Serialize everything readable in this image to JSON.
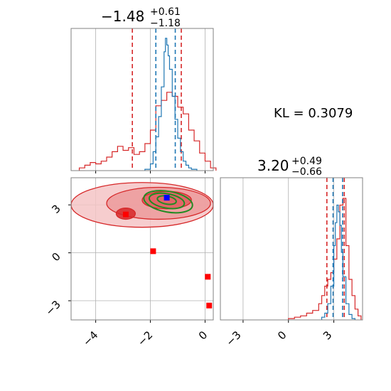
{
  "colors": {
    "red": "#d62728",
    "blue": "#1f77b4",
    "green": "#228b22",
    "scatter_blue": "#0000ff",
    "outlier_red": "#ff0000"
  },
  "kl_text": "KL = 0.3079",
  "chart_data": [
    {
      "type": "histogram",
      "panel": "top-left marginal",
      "title_value": "−1.48",
      "title_plus": "+0.61",
      "title_minus": "−1.18",
      "xlim": [
        -4.9,
        0.3
      ],
      "xticks": [
        -4,
        -2,
        0
      ],
      "grid": true,
      "series": [
        {
          "color": "red",
          "x": [
            -4.6,
            -4.4,
            -4.2,
            -4.0,
            -3.8,
            -3.6,
            -3.4,
            -3.2,
            -3.0,
            -2.8,
            -2.6,
            -2.4,
            -2.2,
            -2.0,
            -1.8,
            -1.6,
            -1.4,
            -1.2,
            -1.0,
            -0.8,
            -0.6,
            -0.4,
            -0.2,
            0.0,
            0.2
          ],
          "values": [
            0.02,
            0.04,
            0.06,
            0.05,
            0.07,
            0.1,
            0.14,
            0.18,
            0.15,
            0.17,
            0.12,
            0.14,
            0.2,
            0.3,
            0.48,
            0.52,
            0.58,
            0.55,
            0.47,
            0.42,
            0.3,
            0.22,
            0.13,
            0.07,
            0.02
          ],
          "quantiles": [
            -2.66,
            -0.87
          ]
        },
        {
          "color": "blue",
          "x": [
            -2.2,
            -2.0,
            -1.9,
            -1.8,
            -1.7,
            -1.6,
            -1.5,
            -1.45,
            -1.4,
            -1.35,
            -1.3,
            -1.2,
            -1.1,
            -1.0,
            -0.9,
            -0.8,
            -0.7,
            -0.6,
            -0.5
          ],
          "values": [
            0.01,
            0.05,
            0.14,
            0.25,
            0.4,
            0.62,
            0.88,
            0.98,
            0.93,
            0.85,
            0.75,
            0.55,
            0.38,
            0.24,
            0.14,
            0.07,
            0.04,
            0.02,
            0.01
          ],
          "quantiles": [
            -1.8,
            -1.09
          ]
        }
      ]
    },
    {
      "type": "histogram",
      "panel": "bottom-right marginal",
      "title_value": "3.20",
      "title_plus": "+0.49",
      "title_minus": "−0.66",
      "xlim": [
        -4.5,
        4.9
      ],
      "xticks": [
        -3,
        0,
        3
      ],
      "grid": true,
      "series": [
        {
          "color": "red",
          "x": [
            0.0,
            0.4,
            0.8,
            1.2,
            1.6,
            2.0,
            2.2,
            2.4,
            2.6,
            2.8,
            3.0,
            3.2,
            3.4,
            3.6,
            3.8,
            4.0,
            4.2,
            4.4,
            4.6
          ],
          "values": [
            0.01,
            0.02,
            0.03,
            0.05,
            0.07,
            0.12,
            0.18,
            0.25,
            0.3,
            0.35,
            0.45,
            0.6,
            0.85,
            0.9,
            0.55,
            0.3,
            0.18,
            0.08,
            0.03
          ],
          "quantiles": [
            2.54,
            3.69
          ]
        },
        {
          "color": "blue",
          "x": [
            2.2,
            2.4,
            2.6,
            2.8,
            3.0,
            3.1,
            3.2,
            3.3,
            3.4,
            3.5,
            3.6,
            3.8,
            4.0,
            4.2
          ],
          "values": [
            0.02,
            0.05,
            0.12,
            0.25,
            0.55,
            0.72,
            0.85,
            0.8,
            0.7,
            0.5,
            0.32,
            0.12,
            0.04,
            0.01
          ],
          "quantiles": [
            2.95,
            3.58
          ]
        }
      ]
    },
    {
      "type": "scatter",
      "panel": "bottom-left joint",
      "xlim": [
        -4.9,
        0.3
      ],
      "ylim": [
        -4.2,
        4.7
      ],
      "xticks": [
        -4,
        -2,
        0
      ],
      "yticks": [
        -3,
        0,
        3
      ],
      "grid": true,
      "outliers": [
        {
          "x": -1.9,
          "y": 0.1
        },
        {
          "x": 0.1,
          "y": -1.5
        },
        {
          "x": 0.15,
          "y": -3.3
        },
        {
          "x": -2.9,
          "y": 2.4
        }
      ],
      "blue_mode": {
        "x": -1.4,
        "y": 3.45
      },
      "red_contours": [
        {
          "cx": -2.9,
          "cy": 2.45,
          "rx": 0.35,
          "ry": 0.35
        },
        {
          "cx": -1.4,
          "cy": 3.3,
          "rx": 0.9,
          "ry": 0.55
        },
        {
          "cx": -1.7,
          "cy": 3.1,
          "rx": 1.9,
          "ry": 1.0
        },
        {
          "cx": -2.3,
          "cy": 3.0,
          "rx": 2.6,
          "ry": 1.4
        }
      ],
      "green_contours": [
        {
          "cx": -1.4,
          "cy": 3.3,
          "rx": 0.35,
          "ry": 0.25
        },
        {
          "cx": -1.4,
          "cy": 3.25,
          "rx": 0.65,
          "ry": 0.45
        },
        {
          "cx": -1.35,
          "cy": 3.2,
          "rx": 0.9,
          "ry": 0.65
        }
      ]
    }
  ]
}
